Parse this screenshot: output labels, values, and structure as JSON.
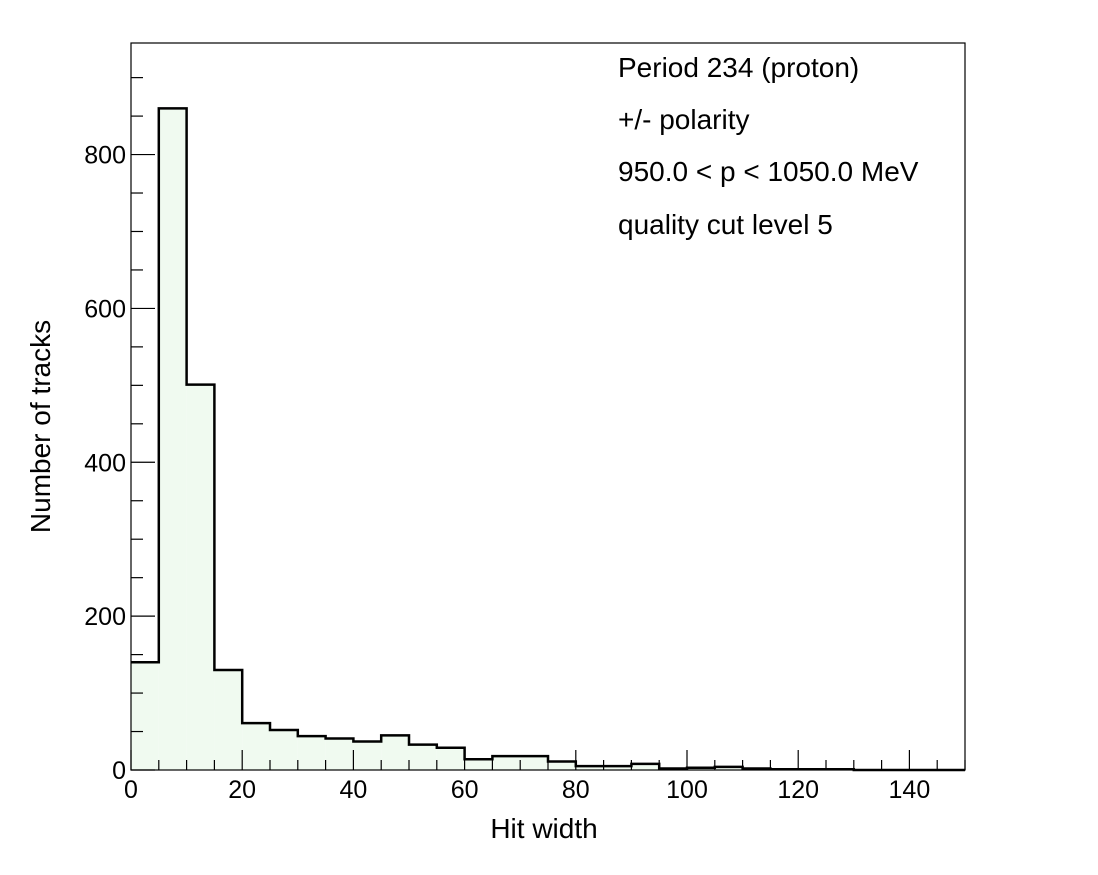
{
  "chart_data": {
    "type": "bar",
    "style": "histogram",
    "xlabel": "Hit width",
    "ylabel": "Number of tracks",
    "xlim": [
      0,
      150
    ],
    "ylim": [
      0,
      945
    ],
    "bin_width": 5,
    "bin_edges": [
      0,
      5,
      10,
      15,
      20,
      25,
      30,
      35,
      40,
      45,
      50,
      55,
      60,
      65,
      70,
      75,
      80,
      85,
      90,
      95,
      100,
      105,
      110,
      115,
      120,
      125,
      130,
      135,
      140,
      145,
      150
    ],
    "values": [
      140,
      860,
      501,
      130,
      61,
      52,
      44,
      41,
      37,
      45,
      33,
      29,
      14,
      18,
      18,
      11,
      5,
      5,
      8,
      2,
      3,
      4,
      2,
      1,
      1,
      1,
      0,
      0,
      0,
      0
    ],
    "x_ticks": [
      0,
      20,
      40,
      60,
      80,
      100,
      120,
      140
    ],
    "y_ticks": [
      0,
      200,
      400,
      600,
      800
    ],
    "annotations": [
      "Period 234 (proton)",
      "+/- polarity",
      "950.0 < p < 1050.0 MeV",
      "quality cut level 5"
    ],
    "fill_color": "#f0faf0",
    "line_color": "#000000",
    "grid": false,
    "legend": "none"
  }
}
